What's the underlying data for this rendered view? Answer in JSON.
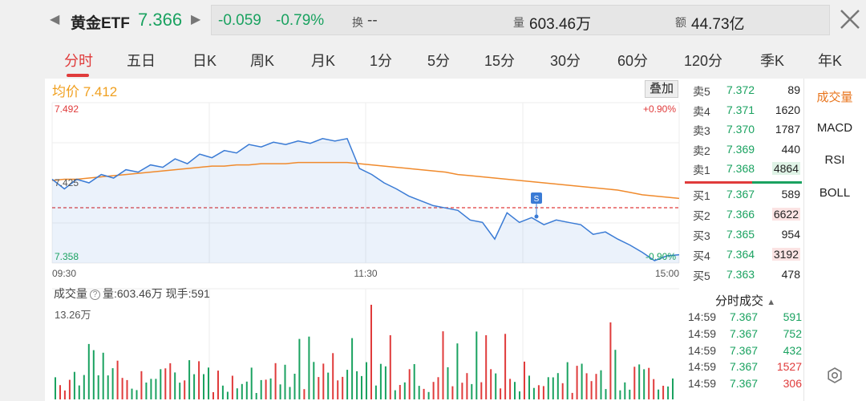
{
  "header": {
    "name": "黄金ETF",
    "price": "7.366",
    "change": "-0.059",
    "change_pct": "-0.79%",
    "turnover_label": "换",
    "turnover_value": "--",
    "volume_label": "量",
    "volume_value": "603.46万",
    "amount_label": "额",
    "amount_value": "44.73亿"
  },
  "tabs": [
    "分时",
    "五日",
    "日K",
    "周K",
    "月K",
    "1分",
    "5分",
    "15分",
    "30分",
    "60分",
    "120分",
    "季K",
    "年K"
  ],
  "chart": {
    "avg_label": "均价 7.412",
    "overlay_label": "叠加",
    "y_top": "7.492",
    "y_mid": "7.425",
    "y_bot": "7.358",
    "pct_top": "+0.90%",
    "pct_bot": "-0.90%",
    "x_start": "09:30",
    "x_mid": "11:30",
    "x_end": "15:00",
    "marker": "S",
    "vol_title": "成交量",
    "vol_info": "量:603.46万 现手:591",
    "vol_max": "13.26万"
  },
  "chart_data": {
    "type": "line",
    "title": "",
    "ylim": [
      7.358,
      7.492
    ],
    "prev_close": 7.425,
    "series": [
      {
        "name": "",
        "color": "#3a7bd5",
        "values": [
          7.428,
          7.42,
          7.428,
          7.425,
          7.432,
          7.429,
          7.436,
          7.434,
          7.44,
          7.438,
          7.445,
          7.441,
          7.449,
          7.446,
          7.452,
          7.45,
          7.457,
          7.455,
          7.459,
          7.457,
          7.46,
          7.458,
          7.462,
          7.46,
          7.462,
          7.437,
          7.432,
          7.425,
          7.42,
          7.414,
          7.41,
          7.406,
          7.404,
          7.402,
          7.394,
          7.392,
          7.378,
          7.4,
          7.392,
          7.396,
          7.39,
          7.394,
          7.392,
          7.39,
          7.382,
          7.384,
          7.378,
          7.373,
          7.367,
          7.36,
          7.364,
          7.365
        ]
      },
      {
        "name": "均价",
        "color": "#f08a2c",
        "values": [
          7.427,
          7.428,
          7.428,
          7.429,
          7.43,
          7.431,
          7.432,
          7.433,
          7.434,
          7.435,
          7.436,
          7.437,
          7.438,
          7.439,
          7.439,
          7.44,
          7.44,
          7.441,
          7.441,
          7.441,
          7.442,
          7.442,
          7.442,
          7.442,
          7.442,
          7.441,
          7.44,
          7.439,
          7.438,
          7.437,
          7.436,
          7.435,
          7.434,
          7.432,
          7.431,
          7.43,
          7.429,
          7.428,
          7.427,
          7.426,
          7.425,
          7.424,
          7.423,
          7.422,
          7.421,
          7.42,
          7.419,
          7.417,
          7.415,
          7.414,
          7.413,
          7.412
        ]
      }
    ]
  },
  "orderbook": {
    "asks": [
      {
        "label": "卖5",
        "price": "7.372",
        "vol": "89",
        "pc": "#1aa260",
        "hl": ""
      },
      {
        "label": "卖4",
        "price": "7.371",
        "vol": "1620",
        "pc": "#1aa260",
        "hl": ""
      },
      {
        "label": "卖3",
        "price": "7.370",
        "vol": "1787",
        "pc": "#1aa260",
        "hl": ""
      },
      {
        "label": "卖2",
        "price": "7.369",
        "vol": "440",
        "pc": "#1aa260",
        "hl": ""
      },
      {
        "label": "卖1",
        "price": "7.368",
        "vol": "4864",
        "pc": "#1aa260",
        "hl": "green"
      }
    ],
    "bids": [
      {
        "label": "买1",
        "price": "7.367",
        "vol": "589",
        "pc": "#1aa260",
        "hl": ""
      },
      {
        "label": "买2",
        "price": "7.366",
        "vol": "6622",
        "pc": "#1aa260",
        "hl": "red"
      },
      {
        "label": "买3",
        "price": "7.365",
        "vol": "954",
        "pc": "#1aa260",
        "hl": ""
      },
      {
        "label": "买4",
        "price": "7.364",
        "vol": "3192",
        "pc": "#1aa260",
        "hl": "red"
      },
      {
        "label": "买5",
        "price": "7.363",
        "vol": "478",
        "pc": "#1aa260",
        "hl": ""
      }
    ]
  },
  "trades": {
    "title": "分时成交",
    "rows": [
      {
        "time": "14:59",
        "price": "7.367",
        "vol": "591",
        "vc": "#1aa260"
      },
      {
        "time": "14:59",
        "price": "7.367",
        "vol": "752",
        "vc": "#1aa260"
      },
      {
        "time": "14:59",
        "price": "7.367",
        "vol": "432",
        "vc": "#1aa260"
      },
      {
        "time": "14:59",
        "price": "7.367",
        "vol": "1527",
        "vc": "#e03b3b"
      },
      {
        "time": "14:59",
        "price": "7.367",
        "vol": "306",
        "vc": "#e03b3b"
      }
    ]
  },
  "side_panel": [
    "成交量",
    "MACD",
    "RSI",
    "BOLL"
  ],
  "colors": {
    "up": "#e03b3b",
    "down": "#1aa260",
    "price_line": "#3a7bd5",
    "avg_line": "#f08a2c"
  }
}
